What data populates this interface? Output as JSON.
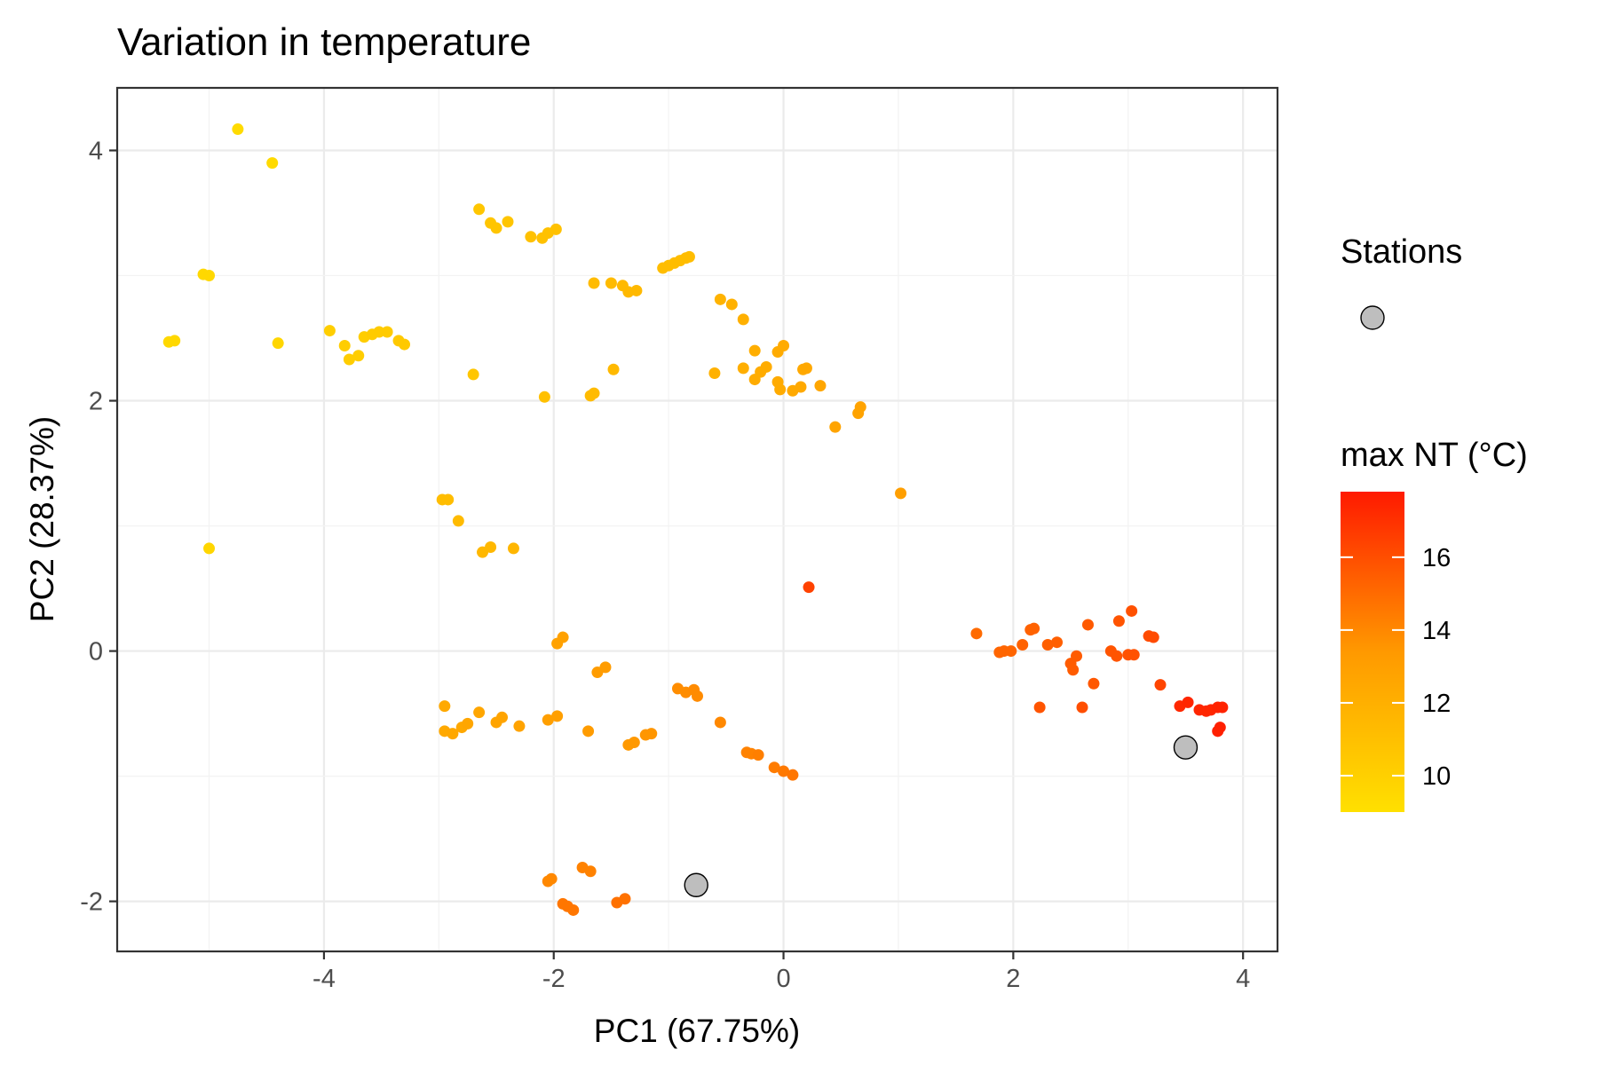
{
  "chart_data": {
    "type": "scatter",
    "title": "Variation in temperature",
    "xlabel": "PC1 (67.75%)",
    "ylabel": "PC2 (28.37%)",
    "xlim": [
      -5.8,
      4.3
    ],
    "ylim": [
      -2.4,
      4.5
    ],
    "x_ticks": [
      -4,
      -2,
      0,
      2,
      4
    ],
    "y_ticks": [
      -2,
      0,
      2,
      4
    ],
    "x_tick_labels": [
      "-4",
      "-2",
      "0",
      "2",
      "4"
    ],
    "y_tick_labels": [
      "-2",
      "0",
      "2",
      "4"
    ],
    "grid": true,
    "legend_position": "right",
    "stations_legend": {
      "title": "Stations",
      "color": "#bebebe"
    },
    "colorbar": {
      "title": "max NT (°C)",
      "min": 9,
      "max": 17.8,
      "low_color": "#ffe000",
      "mid_color": "#ff9900",
      "high_color": "#ff1a00",
      "ticks": [
        10,
        12,
        14,
        16
      ],
      "tick_labels": [
        "10",
        "12",
        "14",
        "16"
      ]
    },
    "series": [
      {
        "points": [
          {
            "x": -4.75,
            "y": 4.17,
            "t": 9.3
          },
          {
            "x": -4.45,
            "y": 3.9,
            "t": 9.4
          },
          {
            "x": -5.05,
            "y": 3.01,
            "t": 9.5
          },
          {
            "x": -5.0,
            "y": 3.0,
            "t": 9.5
          },
          {
            "x": -5.35,
            "y": 2.47,
            "t": 9.5
          },
          {
            "x": -5.3,
            "y": 2.48,
            "t": 9.5
          },
          {
            "x": -4.4,
            "y": 2.46,
            "t": 9.6
          },
          {
            "x": -5.0,
            "y": 0.82,
            "t": 9.6
          },
          {
            "x": -3.95,
            "y": 2.56,
            "t": 10.1
          },
          {
            "x": -3.82,
            "y": 2.44,
            "t": 10.2
          },
          {
            "x": -3.78,
            "y": 2.33,
            "t": 10.2
          },
          {
            "x": -3.7,
            "y": 2.36,
            "t": 10.2
          },
          {
            "x": -3.65,
            "y": 2.51,
            "t": 10.2
          },
          {
            "x": -3.58,
            "y": 2.53,
            "t": 10.3
          },
          {
            "x": -3.52,
            "y": 2.55,
            "t": 10.3
          },
          {
            "x": -3.45,
            "y": 2.55,
            "t": 10.3
          },
          {
            "x": -3.35,
            "y": 2.48,
            "t": 10.4
          },
          {
            "x": -3.3,
            "y": 2.45,
            "t": 10.4
          },
          {
            "x": -2.65,
            "y": 3.53,
            "t": 10.6
          },
          {
            "x": -2.55,
            "y": 3.42,
            "t": 10.7
          },
          {
            "x": -2.5,
            "y": 3.38,
            "t": 10.7
          },
          {
            "x": -2.4,
            "y": 3.43,
            "t": 10.7
          },
          {
            "x": -2.2,
            "y": 3.31,
            "t": 10.9
          },
          {
            "x": -2.1,
            "y": 3.3,
            "t": 10.9
          },
          {
            "x": -2.05,
            "y": 3.34,
            "t": 10.9
          },
          {
            "x": -1.98,
            "y": 3.37,
            "t": 10.9
          },
          {
            "x": -1.65,
            "y": 2.94,
            "t": 11.3
          },
          {
            "x": -1.5,
            "y": 2.94,
            "t": 11.3
          },
          {
            "x": -1.4,
            "y": 2.92,
            "t": 11.4
          },
          {
            "x": -1.35,
            "y": 2.87,
            "t": 11.4
          },
          {
            "x": -1.28,
            "y": 2.88,
            "t": 11.4
          },
          {
            "x": -1.05,
            "y": 3.06,
            "t": 11.2
          },
          {
            "x": -1.0,
            "y": 3.08,
            "t": 11.2
          },
          {
            "x": -0.95,
            "y": 3.1,
            "t": 11.2
          },
          {
            "x": -0.9,
            "y": 3.12,
            "t": 11.2
          },
          {
            "x": -0.85,
            "y": 3.14,
            "t": 11.2
          },
          {
            "x": -0.82,
            "y": 3.15,
            "t": 11.2
          },
          {
            "x": -0.55,
            "y": 2.81,
            "t": 11.8
          },
          {
            "x": -0.45,
            "y": 2.77,
            "t": 11.9
          },
          {
            "x": -0.35,
            "y": 2.65,
            "t": 12.0
          },
          {
            "x": -0.25,
            "y": 2.4,
            "t": 12.1
          },
          {
            "x": -0.05,
            "y": 2.39,
            "t": 12.3
          },
          {
            "x": 0.0,
            "y": 2.44,
            "t": 12.3
          },
          {
            "x": -0.6,
            "y": 2.22,
            "t": 11.9
          },
          {
            "x": -0.35,
            "y": 2.26,
            "t": 12.1
          },
          {
            "x": -0.2,
            "y": 2.23,
            "t": 12.2
          },
          {
            "x": -0.15,
            "y": 2.27,
            "t": 12.2
          },
          {
            "x": -0.25,
            "y": 2.17,
            "t": 12.2
          },
          {
            "x": -0.05,
            "y": 2.15,
            "t": 12.3
          },
          {
            "x": -0.03,
            "y": 2.09,
            "t": 12.3
          },
          {
            "x": 0.08,
            "y": 2.08,
            "t": 12.4
          },
          {
            "x": 0.15,
            "y": 2.11,
            "t": 12.4
          },
          {
            "x": 0.17,
            "y": 2.25,
            "t": 12.4
          },
          {
            "x": 0.2,
            "y": 2.26,
            "t": 12.5
          },
          {
            "x": 0.32,
            "y": 2.12,
            "t": 12.6
          },
          {
            "x": 0.45,
            "y": 1.79,
            "t": 12.7
          },
          {
            "x": 0.65,
            "y": 1.9,
            "t": 12.8
          },
          {
            "x": 0.67,
            "y": 1.95,
            "t": 12.8
          },
          {
            "x": 1.02,
            "y": 1.26,
            "t": 13.0
          },
          {
            "x": -2.7,
            "y": 2.21,
            "t": 10.6
          },
          {
            "x": -2.08,
            "y": 2.03,
            "t": 11.0
          },
          {
            "x": -1.68,
            "y": 2.04,
            "t": 11.3
          },
          {
            "x": -1.65,
            "y": 2.06,
            "t": 11.3
          },
          {
            "x": -1.48,
            "y": 2.25,
            "t": 11.4
          },
          {
            "x": -2.97,
            "y": 1.21,
            "t": 11.2
          },
          {
            "x": -2.92,
            "y": 1.21,
            "t": 11.2
          },
          {
            "x": -2.83,
            "y": 1.04,
            "t": 11.3
          },
          {
            "x": -2.62,
            "y": 0.79,
            "t": 11.5
          },
          {
            "x": -2.55,
            "y": 0.83,
            "t": 11.5
          },
          {
            "x": -2.35,
            "y": 0.82,
            "t": 11.6
          },
          {
            "x": 0.22,
            "y": 0.51,
            "t": 16.4
          },
          {
            "x": -1.97,
            "y": 0.06,
            "t": 12.9
          },
          {
            "x": -1.92,
            "y": 0.11,
            "t": 12.9
          },
          {
            "x": -1.62,
            "y": -0.17,
            "t": 13.2
          },
          {
            "x": -1.55,
            "y": -0.13,
            "t": 13.2
          },
          {
            "x": -2.95,
            "y": -0.44,
            "t": 12.4
          },
          {
            "x": -2.95,
            "y": -0.64,
            "t": 12.4
          },
          {
            "x": -2.88,
            "y": -0.66,
            "t": 12.5
          },
          {
            "x": -2.8,
            "y": -0.61,
            "t": 12.5
          },
          {
            "x": -2.75,
            "y": -0.58,
            "t": 12.6
          },
          {
            "x": -2.65,
            "y": -0.49,
            "t": 12.6
          },
          {
            "x": -2.5,
            "y": -0.57,
            "t": 12.7
          },
          {
            "x": -2.45,
            "y": -0.53,
            "t": 12.7
          },
          {
            "x": -2.3,
            "y": -0.6,
            "t": 12.8
          },
          {
            "x": -2.05,
            "y": -0.55,
            "t": 13.0
          },
          {
            "x": -1.97,
            "y": -0.52,
            "t": 13.0
          },
          {
            "x": -1.7,
            "y": -0.64,
            "t": 13.2
          },
          {
            "x": -1.35,
            "y": -0.75,
            "t": 13.4
          },
          {
            "x": -1.3,
            "y": -0.73,
            "t": 13.4
          },
          {
            "x": -1.2,
            "y": -0.67,
            "t": 13.5
          },
          {
            "x": -1.15,
            "y": -0.66,
            "t": 13.5
          },
          {
            "x": -0.92,
            "y": -0.3,
            "t": 13.8
          },
          {
            "x": -0.85,
            "y": -0.33,
            "t": 13.8
          },
          {
            "x": -0.78,
            "y": -0.31,
            "t": 13.9
          },
          {
            "x": -0.75,
            "y": -0.36,
            "t": 13.9
          },
          {
            "x": -0.55,
            "y": -0.57,
            "t": 14.0
          },
          {
            "x": -0.32,
            "y": -0.81,
            "t": 14.2
          },
          {
            "x": -0.28,
            "y": -0.82,
            "t": 14.2
          },
          {
            "x": -0.22,
            "y": -0.83,
            "t": 14.3
          },
          {
            "x": -0.08,
            "y": -0.93,
            "t": 14.4
          },
          {
            "x": 0.0,
            "y": -0.96,
            "t": 14.5
          },
          {
            "x": 0.08,
            "y": -0.99,
            "t": 14.6
          },
          {
            "x": -2.05,
            "y": -1.84,
            "t": 14.0
          },
          {
            "x": -2.02,
            "y": -1.82,
            "t": 14.0
          },
          {
            "x": -1.75,
            "y": -1.73,
            "t": 14.2
          },
          {
            "x": -1.68,
            "y": -1.76,
            "t": 14.2
          },
          {
            "x": -1.92,
            "y": -2.02,
            "t": 14.6
          },
          {
            "x": -1.88,
            "y": -2.04,
            "t": 14.6
          },
          {
            "x": -1.83,
            "y": -2.07,
            "t": 14.6
          },
          {
            "x": -1.45,
            "y": -2.01,
            "t": 14.8
          },
          {
            "x": -1.38,
            "y": -1.98,
            "t": 14.8
          },
          {
            "x": 1.68,
            "y": 0.14,
            "t": 15.0
          },
          {
            "x": 1.88,
            "y": -0.01,
            "t": 15.2
          },
          {
            "x": 1.92,
            "y": 0.0,
            "t": 15.2
          },
          {
            "x": 1.98,
            "y": 0.0,
            "t": 15.2
          },
          {
            "x": 2.08,
            "y": 0.05,
            "t": 15.3
          },
          {
            "x": 2.15,
            "y": 0.17,
            "t": 15.3
          },
          {
            "x": 2.18,
            "y": 0.18,
            "t": 15.3
          },
          {
            "x": 2.3,
            "y": 0.05,
            "t": 15.4
          },
          {
            "x": 2.38,
            "y": 0.07,
            "t": 15.4
          },
          {
            "x": 2.5,
            "y": -0.1,
            "t": 15.5
          },
          {
            "x": 2.52,
            "y": -0.15,
            "t": 15.5
          },
          {
            "x": 2.55,
            "y": -0.04,
            "t": 15.5
          },
          {
            "x": 2.65,
            "y": 0.21,
            "t": 15.6
          },
          {
            "x": 2.7,
            "y": -0.26,
            "t": 15.7
          },
          {
            "x": 2.85,
            "y": 0.0,
            "t": 15.8
          },
          {
            "x": 2.9,
            "y": -0.04,
            "t": 15.8
          },
          {
            "x": 2.92,
            "y": 0.24,
            "t": 15.8
          },
          {
            "x": 3.0,
            "y": -0.03,
            "t": 15.9
          },
          {
            "x": 3.05,
            "y": -0.03,
            "t": 15.9
          },
          {
            "x": 3.03,
            "y": 0.32,
            "t": 15.9
          },
          {
            "x": 3.18,
            "y": 0.12,
            "t": 16.1
          },
          {
            "x": 3.22,
            "y": 0.11,
            "t": 16.1
          },
          {
            "x": 3.28,
            "y": -0.27,
            "t": 16.3
          },
          {
            "x": 2.23,
            "y": -0.45,
            "t": 15.8
          },
          {
            "x": 2.6,
            "y": -0.45,
            "t": 16.0
          },
          {
            "x": 3.45,
            "y": -0.44,
            "t": 17.3
          },
          {
            "x": 3.52,
            "y": -0.41,
            "t": 17.4
          },
          {
            "x": 3.62,
            "y": -0.47,
            "t": 17.4
          },
          {
            "x": 3.68,
            "y": -0.48,
            "t": 17.4
          },
          {
            "x": 3.72,
            "y": -0.47,
            "t": 17.4
          },
          {
            "x": 3.78,
            "y": -0.45,
            "t": 17.5
          },
          {
            "x": 3.82,
            "y": -0.45,
            "t": 17.5
          },
          {
            "x": 3.8,
            "y": -0.61,
            "t": 17.6
          },
          {
            "x": 3.78,
            "y": -0.64,
            "t": 17.6
          }
        ]
      },
      {
        "name": "Stations",
        "points": [
          {
            "x": -0.76,
            "y": -1.87
          },
          {
            "x": 3.5,
            "y": -0.77
          }
        ]
      }
    ]
  }
}
